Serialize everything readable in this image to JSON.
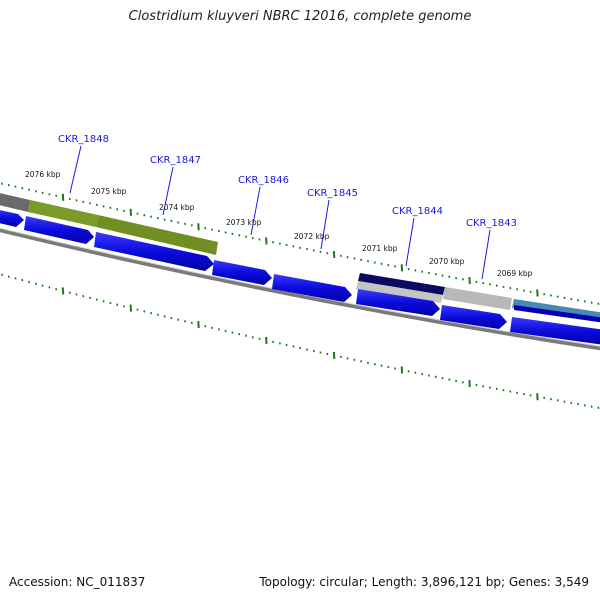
{
  "title": "Clostridium kluyveri NBRC 12016, complete genome",
  "footer": {
    "accession": "Accession: NC_011837",
    "summary": "Topology: circular; Length: 3,896,121 bp; Genes: 3,549"
  },
  "colors": {
    "cds_forward": "#0b0bdc",
    "cds_reverse": "#0b0bdc",
    "backbone": "#7a7a7a",
    "tick": "#1a7a1a",
    "label": "#1a1adb",
    "cog_green": "#7a9a2a",
    "cog_gray": "#9a9a9a",
    "cog_navy": "#0a0a60",
    "cog_lightgray": "#c4c4c4",
    "cog_steelblue": "#4a88b4",
    "cog_darkgray": "#6a6a6a"
  },
  "kbp_labels": [
    "2076 kbp",
    "2075 kbp",
    "2074 kbp",
    "2073 kbp",
    "2072 kbp",
    "2071 kbp",
    "2070 kbp",
    "2069 kbp"
  ],
  "genes": [
    {
      "label": "CKR_1848"
    },
    {
      "label": "CKR_1847"
    },
    {
      "label": "CKR_1846"
    },
    {
      "label": "CKR_1845"
    },
    {
      "label": "CKR_1844"
    },
    {
      "label": "CKR_1843"
    }
  ]
}
